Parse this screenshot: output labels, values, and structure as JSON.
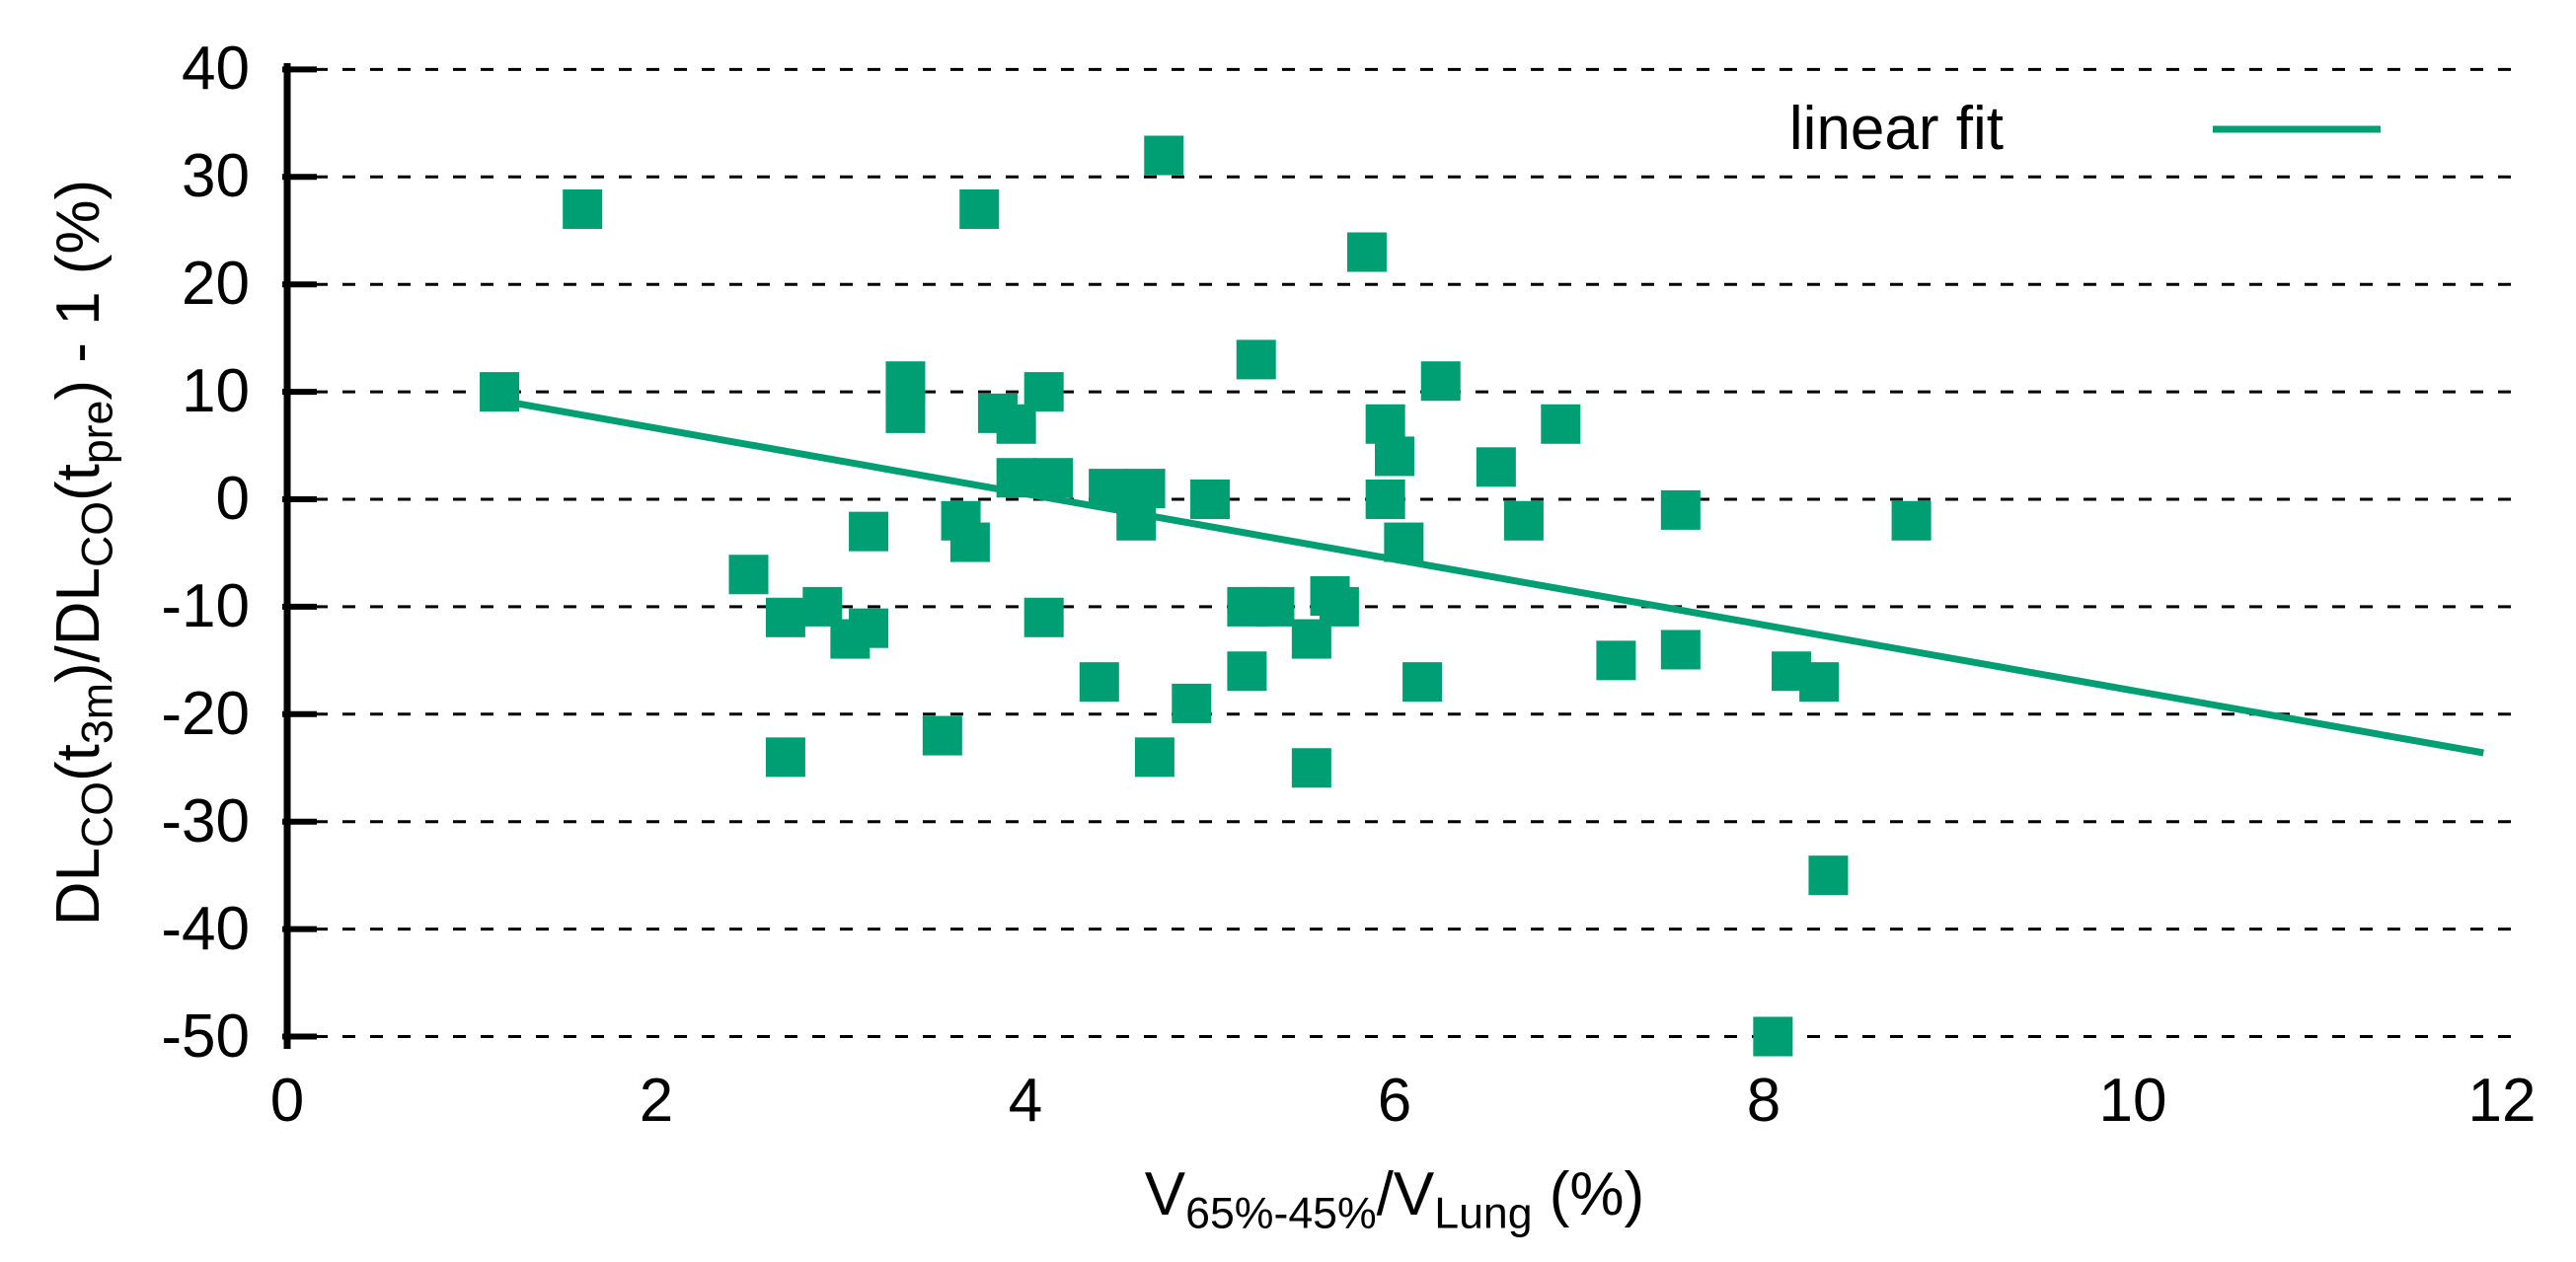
{
  "chart_data": {
    "type": "scatter",
    "title": "",
    "xlabel_parts": [
      {
        "text": "V",
        "sub": false
      },
      {
        "text": "65%-45%",
        "sub": true
      },
      {
        "text": "/V",
        "sub": false
      },
      {
        "text": "Lung",
        "sub": true
      },
      {
        "text": " (%)",
        "sub": false
      }
    ],
    "ylabel_parts": [
      {
        "text": "DL",
        "sub": false
      },
      {
        "text": "CO",
        "sub": true
      },
      {
        "text": "(t",
        "sub": false
      },
      {
        "text": "3m",
        "sub": true
      },
      {
        "text": ")/DL",
        "sub": false
      },
      {
        "text": "CO",
        "sub": true
      },
      {
        "text": "(t",
        "sub": false
      },
      {
        "text": "pre",
        "sub": true
      },
      {
        "text": ") - 1 (%)",
        "sub": false
      }
    ],
    "xlim": [
      0,
      12
    ],
    "ylim": [
      -50,
      40
    ],
    "x_ticks": [
      0,
      2,
      4,
      6,
      8,
      10,
      12
    ],
    "y_ticks": [
      40,
      30,
      20,
      10,
      0,
      -10,
      -20,
      -30,
      -40,
      -50
    ],
    "grid": "dashed horizontal",
    "legend": {
      "label": "linear fit",
      "position": "top-right"
    },
    "series_color": "#009E73",
    "points": [
      [
        1.15,
        10
      ],
      [
        1.6,
        27
      ],
      [
        2.5,
        -7
      ],
      [
        2.7,
        -11
      ],
      [
        2.7,
        -24
      ],
      [
        2.9,
        -10
      ],
      [
        3.05,
        -13
      ],
      [
        3.15,
        -12
      ],
      [
        3.15,
        -3
      ],
      [
        3.35,
        11
      ],
      [
        3.35,
        8
      ],
      [
        3.55,
        -22
      ],
      [
        3.65,
        -2
      ],
      [
        3.7,
        -4
      ],
      [
        3.75,
        27
      ],
      [
        3.85,
        8
      ],
      [
        3.95,
        7
      ],
      [
        3.95,
        2
      ],
      [
        4.1,
        10
      ],
      [
        4.15,
        2
      ],
      [
        4.1,
        -11
      ],
      [
        4.4,
        -17
      ],
      [
        4.45,
        1
      ],
      [
        4.65,
        1
      ],
      [
        4.6,
        -2
      ],
      [
        4.7,
        -24
      ],
      [
        4.75,
        32
      ],
      [
        4.9,
        -19
      ],
      [
        5.0,
        0
      ],
      [
        5.2,
        -10
      ],
      [
        5.35,
        -10
      ],
      [
        5.2,
        -16
      ],
      [
        5.55,
        -13
      ],
      [
        5.65,
        -9
      ],
      [
        5.7,
        -10
      ],
      [
        5.55,
        -25
      ],
      [
        5.25,
        13
      ],
      [
        5.85,
        23
      ],
      [
        5.95,
        7
      ],
      [
        6.0,
        4
      ],
      [
        5.95,
        0
      ],
      [
        6.05,
        -4
      ],
      [
        6.25,
        11
      ],
      [
        6.15,
        -17
      ],
      [
        6.55,
        3
      ],
      [
        6.7,
        -2
      ],
      [
        6.9,
        7
      ],
      [
        7.2,
        -15
      ],
      [
        7.55,
        -1
      ],
      [
        7.55,
        -14
      ],
      [
        8.05,
        -50
      ],
      [
        8.15,
        -16
      ],
      [
        8.3,
        -17
      ],
      [
        8.35,
        -35
      ],
      [
        8.8,
        -2
      ]
    ],
    "fit_line": {
      "x1": 1.25,
      "y1": 8.9,
      "x2": 11.9,
      "y2": -23.6,
      "slope": -3.05,
      "intercept": 12.7
    }
  }
}
